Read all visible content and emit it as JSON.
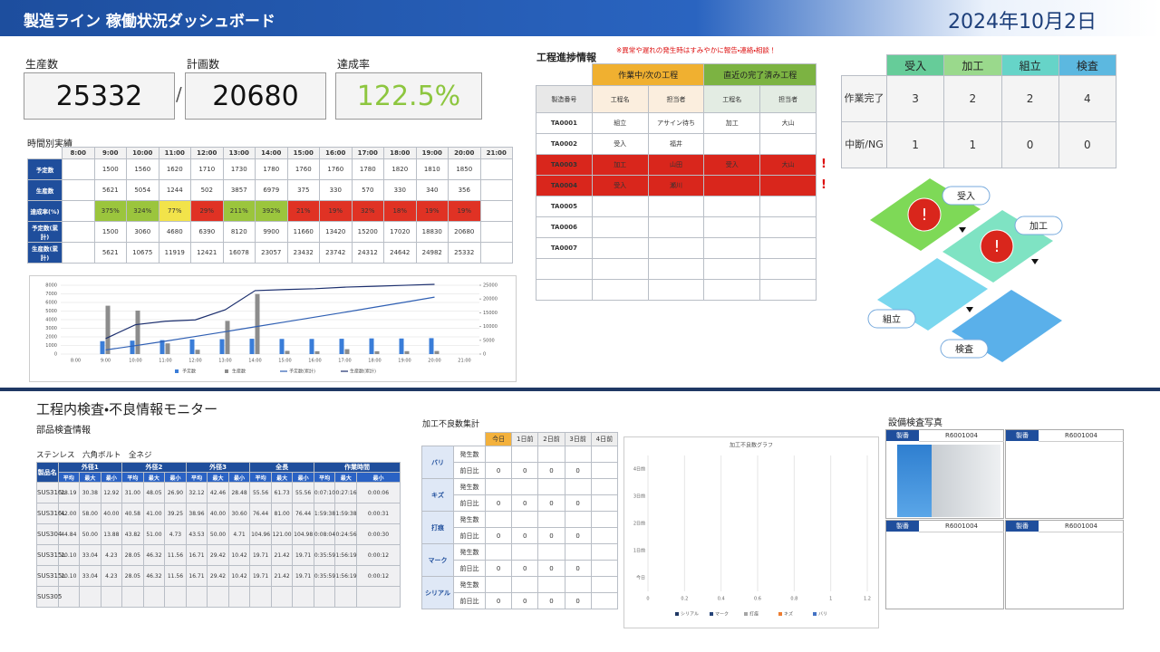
{
  "header": {
    "title": "製造ライン 稼働状況ダッシュボード",
    "date": "2024年10月2日"
  },
  "kpis": {
    "items": [
      {
        "label": "生産数",
        "value": "25332"
      },
      {
        "label": "計画数",
        "value": "20680"
      },
      {
        "label": "達成率",
        "value": "122.5%"
      }
    ],
    "separator": "/"
  },
  "hourly": {
    "title": "時間別実績",
    "hours": [
      "8:00",
      "9:00",
      "10:00",
      "11:00",
      "12:00",
      "13:00",
      "14:00",
      "15:00",
      "16:00",
      "17:00",
      "18:00",
      "19:00",
      "20:00",
      "21:00"
    ],
    "rows": [
      {
        "label": "予定数",
        "values": [
          null,
          1500,
          1560,
          1620,
          1710,
          1730,
          1780,
          1760,
          1760,
          1780,
          1820,
          1810,
          1850,
          null
        ]
      },
      {
        "label": "生産数",
        "values": [
          null,
          5621,
          5054,
          1244,
          502,
          3857,
          6979,
          375,
          330,
          570,
          330,
          340,
          356,
          null
        ]
      },
      {
        "label": "達成率(%)",
        "values": [
          null,
          "375%",
          "324%",
          "77%",
          "29%",
          "211%",
          "392%",
          "21%",
          "19%",
          "32%",
          "18%",
          "19%",
          "19%",
          null
        ]
      },
      {
        "label": "予定数(累計)",
        "values": [
          null,
          1500,
          3060,
          4680,
          6390,
          8120,
          9900,
          11660,
          13420,
          15200,
          17020,
          18830,
          20680,
          null
        ]
      },
      {
        "label": "生産数(累計)",
        "values": [
          null,
          5621,
          10675,
          11919,
          12421,
          16078,
          23057,
          23432,
          23742,
          24312,
          24642,
          24982,
          25332,
          null
        ]
      }
    ]
  },
  "hourly_chart": {
    "type": "bar",
    "ylim": [
      0,
      8000
    ],
    "yticks": [
      0,
      1000,
      2000,
      3000,
      4000,
      5000,
      6000,
      7000,
      8000
    ],
    "y2lim": [
      0,
      25000
    ],
    "y2ticks": [
      0,
      5000,
      10000,
      15000,
      20000,
      25000
    ],
    "colors": [
      "#3a7dd8",
      "#8c8c8c",
      "#2f5fb3",
      "#1c2f6e"
    ]
  },
  "progress": {
    "title": "工程進捗情報",
    "note": "※異常や遅れの発生時はすみやかに報告・連絡・相談！",
    "alert_mark": "!",
    "groups": [
      "作業中/次の工程",
      "直近の完了済み工程"
    ],
    "columns": [
      "製造番号",
      "工程名",
      "担当者",
      "工程名",
      "担当者"
    ],
    "rows": [
      {
        "cells": [
          "TA0001",
          "組立",
          "アサイン待ち",
          "加工",
          "大山"
        ],
        "alert": false
      },
      {
        "cells": [
          "TA0002",
          "受入",
          "福井",
          null,
          null
        ],
        "alert": false
      },
      {
        "cells": [
          "TA0003",
          "加工",
          "山田",
          "受入",
          "大山"
        ],
        "alert": true
      },
      {
        "cells": [
          "TA0004",
          "受入",
          "瀬川",
          null,
          null
        ],
        "alert": true
      },
      {
        "cells": [
          "TA0005",
          null,
          null,
          null,
          null
        ],
        "alert": false
      },
      {
        "cells": [
          "TA0006",
          null,
          null,
          null,
          null
        ],
        "alert": false
      },
      {
        "cells": [
          "TA0007",
          null,
          null,
          null,
          null
        ],
        "alert": false
      }
    ]
  },
  "status": {
    "columns": [
      "受入",
      "加工",
      "組立",
      "検査"
    ],
    "colors": [
      "#66cc99",
      "#9ad98c",
      "#66d4c8",
      "#5cb8e0"
    ],
    "rows": [
      {
        "label": "作業完了",
        "values": [
          3,
          2,
          2,
          4
        ]
      },
      {
        "label": "中断/NG",
        "values": [
          1,
          1,
          0,
          0
        ]
      }
    ]
  },
  "flow": {
    "alert_icon": "!",
    "colors": [
      "#7ed957",
      "#7fe3c3",
      "#7ad7ee",
      "#5ab0ea"
    ],
    "steps": [
      {
        "label": "受入",
        "alert": true
      },
      {
        "label": "加工",
        "alert": true
      },
      {
        "label": "組立",
        "alert": false
      },
      {
        "label": "検査",
        "alert": false
      }
    ]
  },
  "monitor": {
    "title": "工程内検査・不良情報モニター"
  },
  "parts": {
    "title": "部品検査情報",
    "subtitle": "ステンレス　六角ボルト　全ネジ",
    "name_header": "製品名",
    "groups": [
      "外径1",
      "外径2",
      "外径3",
      "全長",
      "作業時間"
    ],
    "stats": [
      "平均",
      "最大",
      "最小"
    ],
    "rows": [
      {
        "name": "SUS316L",
        "values": [
          "28.19",
          "30.38",
          "12.92",
          "31.00",
          "48.05",
          "26.90",
          "32.12",
          "42.46",
          "28.48",
          "55.56",
          "61.73",
          "55.56",
          "0:07:10",
          "0:27:16",
          "0:00:06"
        ]
      },
      {
        "name": "SUS316L",
        "values": [
          "42.00",
          "58.00",
          "40.00",
          "40.58",
          "41.00",
          "39.25",
          "38.96",
          "40.00",
          "30.60",
          "76.44",
          "81.00",
          "76.44",
          "1:59:38",
          "1:59:38",
          "0:00:31"
        ]
      },
      {
        "name": "SUS304",
        "values": [
          "44.84",
          "50.00",
          "13.88",
          "43.82",
          "51.00",
          "4.73",
          "43.53",
          "50.00",
          "4.71",
          "104.96",
          "121.00",
          "104.98",
          "0:08:04",
          "0:24:56",
          "0:00:30"
        ]
      },
      {
        "name": "SUS315L",
        "values": [
          "20.10",
          "33.04",
          "4.23",
          "28.05",
          "46.32",
          "11.56",
          "16.71",
          "29.42",
          "10.42",
          "19.71",
          "21.42",
          "19.71",
          "0:35:59",
          "1:56:19",
          "0:00:12"
        ]
      },
      {
        "name": "SUS315L",
        "values": [
          "20.10",
          "33.04",
          "4.23",
          "28.05",
          "46.32",
          "11.56",
          "16.71",
          "29.42",
          "10.42",
          "19.71",
          "21.42",
          "19.71",
          "0:35:59",
          "1:56:19",
          "0:00:12"
        ]
      },
      {
        "name": "SUS305",
        "values": []
      }
    ]
  },
  "defects": {
    "title": "加工不良数集計",
    "days": [
      "今日",
      "1日前",
      "2日前",
      "3日前",
      "4日前"
    ],
    "metrics": [
      "発生数",
      "前日比"
    ],
    "rows": [
      {
        "name": "バリ",
        "count": [
          null,
          null,
          null,
          null,
          null
        ],
        "diff": [
          0,
          0,
          0,
          0,
          null
        ]
      },
      {
        "name": "キズ",
        "count": [
          null,
          null,
          null,
          null,
          null
        ],
        "diff": [
          0,
          0,
          0,
          0,
          null
        ]
      },
      {
        "name": "打痕",
        "count": [
          null,
          null,
          null,
          null,
          null
        ],
        "diff": [
          0,
          0,
          0,
          0,
          null
        ]
      },
      {
        "name": "マーク",
        "count": [
          null,
          null,
          null,
          null,
          null
        ],
        "diff": [
          0,
          0,
          0,
          0,
          null
        ]
      },
      {
        "name": "シリアル",
        "count": [
          null,
          null,
          null,
          null,
          null
        ],
        "diff": [
          0,
          0,
          0,
          0,
          null
        ]
      }
    ]
  },
  "defect_chart": {
    "type": "bar",
    "title": "加工不良数グラフ",
    "xlim": [
      0,
      1.2
    ],
    "xticks": [
      0,
      0.2,
      0.4,
      0.6,
      0.8,
      1,
      1.2
    ],
    "colors": [
      "#4472c4",
      "#ed7d31",
      "#a5a5a5",
      "#264478",
      "#1f3864"
    ]
  },
  "photos": {
    "title": "設備検査写真",
    "label": "製番",
    "items": [
      "R6001004",
      "R6001004",
      "R6001004",
      "R6001004"
    ]
  }
}
